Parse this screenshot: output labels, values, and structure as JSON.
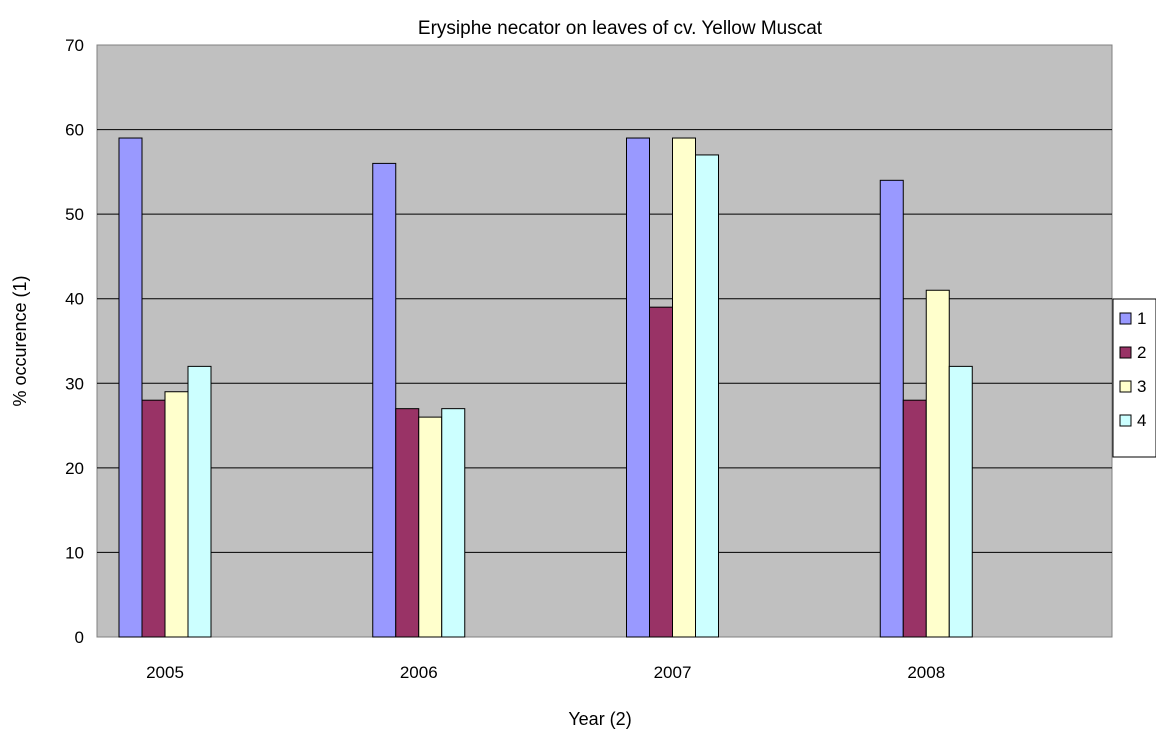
{
  "chart_data": {
    "type": "bar",
    "title": "Erysiphe necator on leaves of cv. Yellow Muscat",
    "xlabel": "Year (2)",
    "ylabel": "% occurence (1)",
    "categories": [
      "2005",
      "2006",
      "2007",
      "2008"
    ],
    "ylim": [
      0,
      70
    ],
    "yticks": [
      0,
      10,
      20,
      30,
      40,
      50,
      60,
      70
    ],
    "grid": true,
    "legend_position": "right",
    "plot_background": "#c0c0c0",
    "series": [
      {
        "name": "1",
        "color": "#9999ff",
        "values": [
          59,
          56,
          59,
          54
        ]
      },
      {
        "name": "2",
        "color": "#993366",
        "values": [
          28,
          27,
          39,
          28
        ]
      },
      {
        "name": "3",
        "color": "#ffffcc",
        "values": [
          29,
          26,
          59,
          41
        ]
      },
      {
        "name": "4",
        "color": "#ccffff",
        "values": [
          32,
          27,
          57,
          32
        ]
      }
    ]
  }
}
